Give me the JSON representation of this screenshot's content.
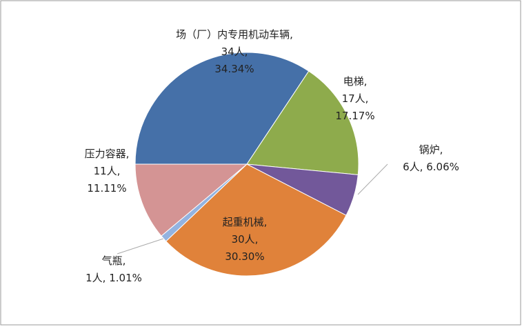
{
  "chart_data": {
    "type": "pie",
    "categories": [
      "场（厂）内专用机动车辆",
      "电梯",
      "锅炉",
      "起重机械",
      "气瓶",
      "压力容器"
    ],
    "values": [
      34,
      17,
      6,
      30,
      1,
      11
    ],
    "value_labels": [
      "34人",
      "17人",
      "6人",
      "30人",
      "1人",
      "11人"
    ],
    "percentages": [
      34.34,
      17.17,
      6.06,
      30.3,
      1.01,
      11.11
    ],
    "percentage_labels": [
      "34.34%",
      "17.17%",
      "6.06%",
      "30.30%",
      "1.01%",
      "11.11%"
    ],
    "separator": ",",
    "colors": [
      "#4570a8",
      "#8eab4c",
      "#72589a",
      "#e0823a",
      "#93b3e0",
      "#d49494"
    ]
  }
}
